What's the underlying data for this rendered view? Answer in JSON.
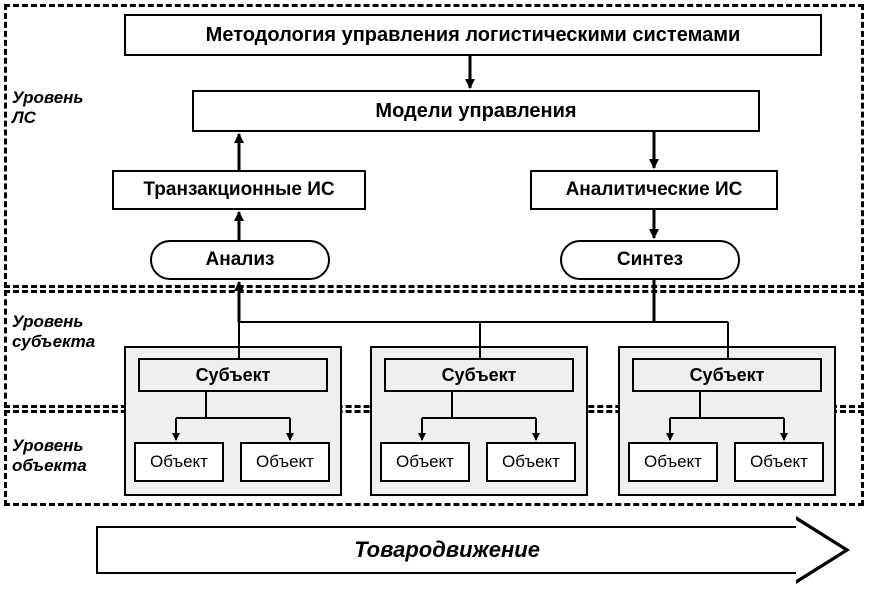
{
  "levels": {
    "ls": {
      "label": "Уровень\nЛС"
    },
    "subject": {
      "label": "Уровень\nсубъекта"
    },
    "object": {
      "label": "Уровень\nобъекта"
    }
  },
  "nodes": {
    "methodology": {
      "text": "Методология управления логистическими системами"
    },
    "models": {
      "text": "Модели управления"
    },
    "transactional": {
      "text": "Транзакционные ИС"
    },
    "analytical": {
      "text": "Аналитические ИС"
    },
    "analysis": {
      "text": "Анализ"
    },
    "synthesis": {
      "text": "Синтез"
    }
  },
  "subject": {
    "label": "Субъект"
  },
  "object": {
    "label": "Объект"
  },
  "flow_arrow": {
    "label": "Товародвижение"
  },
  "style": {
    "bg": "#ffffff",
    "panel_fill": "#efefef",
    "stroke": "#000000",
    "dash": "6,5",
    "font_title_pt": 20,
    "font_mid_pt": 19,
    "font_small_pt": 17,
    "font_level_pt": 17,
    "font_flow_pt": 22,
    "line_width": 2,
    "arrow_line_width": 3
  }
}
